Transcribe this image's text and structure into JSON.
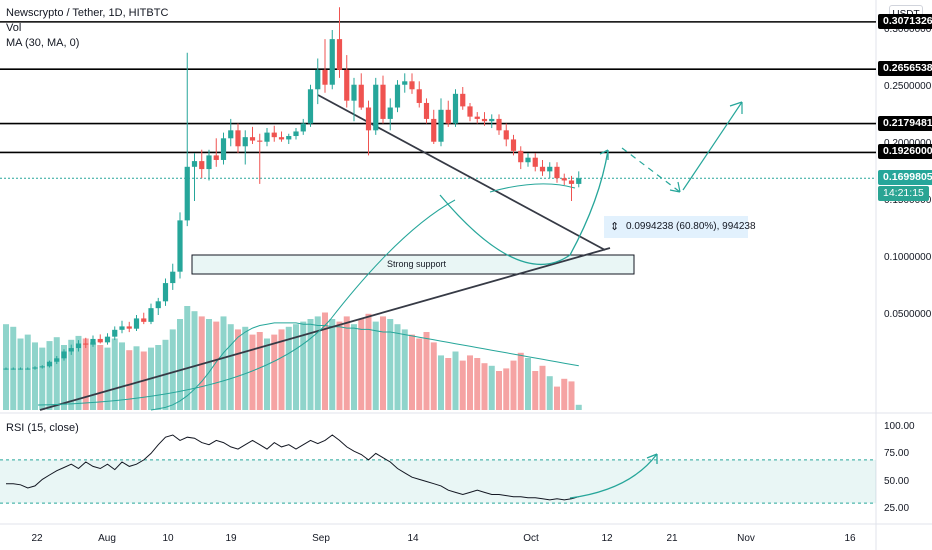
{
  "header": {
    "symbol_line": "Newscrypto / Tether, 1D, HITBTC",
    "vol_label": "Vol",
    "ma_label": "MA (30, MA, 0)"
  },
  "currency": "USDT",
  "rsi": {
    "label": "RSI (15, close)",
    "levels": [
      "100.00",
      "75.00",
      "50.00",
      "25.00"
    ]
  },
  "price_axis": [
    "0.3500000",
    "0.3000000",
    "0.2500000",
    "0.2000000",
    "0.1500000",
    "0.1000000",
    "0.0500000"
  ],
  "horizontal_levels": [
    "0.3071326",
    "0.2656538",
    "0.2179481",
    "0.1926000"
  ],
  "last_price": "0.1699805",
  "countdown": "14:21:15",
  "annotations": {
    "support": "Strong support",
    "measure": "0.0994238 (60.80%), 994238"
  },
  "time_axis": [
    "22",
    "Aug",
    "10",
    "19",
    "Sep",
    "14",
    "Oct",
    "12",
    "21",
    "Nov",
    "16"
  ],
  "colors": {
    "up": "#26a69a",
    "down": "#ef5350",
    "vol_up": "#8fd4cb",
    "vol_down": "#f5a3a3",
    "trend": "#363a45",
    "curve": "#26a69a",
    "projection": "#26a69a"
  },
  "chart_data": {
    "type": "candlestick",
    "symbol": "Newscrypto / Tether",
    "timeframe": "1D",
    "exchange": "HITBTC",
    "ylim": [
      0.0,
      0.37
    ],
    "ohlc": [
      [
        0.003,
        0.004,
        0.002,
        0.003
      ],
      [
        0.003,
        0.004,
        0.002,
        0.003
      ],
      [
        0.003,
        0.004,
        0.002,
        0.003
      ],
      [
        0.003,
        0.004,
        0.002,
        0.003
      ],
      [
        0.003,
        0.005,
        0.002,
        0.004
      ],
      [
        0.004,
        0.006,
        0.003,
        0.005
      ],
      [
        0.005,
        0.01,
        0.004,
        0.009
      ],
      [
        0.009,
        0.014,
        0.007,
        0.012
      ],
      [
        0.012,
        0.02,
        0.01,
        0.018
      ],
      [
        0.018,
        0.024,
        0.015,
        0.021
      ],
      [
        0.021,
        0.028,
        0.018,
        0.025
      ],
      [
        0.025,
        0.03,
        0.021,
        0.024
      ],
      [
        0.024,
        0.032,
        0.022,
        0.029
      ],
      [
        0.029,
        0.033,
        0.025,
        0.026
      ],
      [
        0.026,
        0.034,
        0.024,
        0.031
      ],
      [
        0.031,
        0.04,
        0.028,
        0.037
      ],
      [
        0.037,
        0.045,
        0.034,
        0.04
      ],
      [
        0.04,
        0.044,
        0.035,
        0.038
      ],
      [
        0.038,
        0.05,
        0.036,
        0.047
      ],
      [
        0.047,
        0.052,
        0.042,
        0.044
      ],
      [
        0.044,
        0.06,
        0.042,
        0.056
      ],
      [
        0.056,
        0.065,
        0.05,
        0.062
      ],
      [
        0.062,
        0.082,
        0.058,
        0.078
      ],
      [
        0.078,
        0.095,
        0.072,
        0.088
      ],
      [
        0.088,
        0.14,
        0.082,
        0.133
      ],
      [
        0.133,
        0.28,
        0.128,
        0.18
      ],
      [
        0.18,
        0.192,
        0.15,
        0.185
      ],
      [
        0.185,
        0.195,
        0.17,
        0.178
      ],
      [
        0.178,
        0.195,
        0.168,
        0.19
      ],
      [
        0.19,
        0.205,
        0.18,
        0.186
      ],
      [
        0.186,
        0.21,
        0.182,
        0.205
      ],
      [
        0.205,
        0.222,
        0.198,
        0.212
      ],
      [
        0.212,
        0.218,
        0.192,
        0.198
      ],
      [
        0.198,
        0.212,
        0.182,
        0.206
      ],
      [
        0.206,
        0.215,
        0.2,
        0.203
      ],
      [
        0.203,
        0.209,
        0.165,
        0.202
      ],
      [
        0.202,
        0.214,
        0.198,
        0.21
      ],
      [
        0.21,
        0.216,
        0.202,
        0.206
      ],
      [
        0.206,
        0.211,
        0.202,
        0.204
      ],
      [
        0.204,
        0.209,
        0.2,
        0.207
      ],
      [
        0.207,
        0.214,
        0.204,
        0.211
      ],
      [
        0.211,
        0.222,
        0.208,
        0.218
      ],
      [
        0.218,
        0.252,
        0.215,
        0.248
      ],
      [
        0.248,
        0.275,
        0.235,
        0.265
      ],
      [
        0.265,
        0.292,
        0.245,
        0.252
      ],
      [
        0.252,
        0.3,
        0.248,
        0.292
      ],
      [
        0.292,
        0.32,
        0.258,
        0.265
      ],
      [
        0.265,
        0.278,
        0.232,
        0.238
      ],
      [
        0.238,
        0.258,
        0.22,
        0.252
      ],
      [
        0.252,
        0.262,
        0.23,
        0.232
      ],
      [
        0.232,
        0.238,
        0.19,
        0.212
      ],
      [
        0.212,
        0.258,
        0.208,
        0.252
      ],
      [
        0.252,
        0.26,
        0.218,
        0.222
      ],
      [
        0.222,
        0.24,
        0.212,
        0.232
      ],
      [
        0.232,
        0.256,
        0.228,
        0.252
      ],
      [
        0.252,
        0.262,
        0.245,
        0.255
      ],
      [
        0.255,
        0.262,
        0.244,
        0.248
      ],
      [
        0.248,
        0.255,
        0.232,
        0.236
      ],
      [
        0.236,
        0.24,
        0.218,
        0.222
      ],
      [
        0.222,
        0.23,
        0.2,
        0.202
      ],
      [
        0.202,
        0.24,
        0.198,
        0.23
      ],
      [
        0.23,
        0.238,
        0.215,
        0.218
      ],
      [
        0.218,
        0.248,
        0.215,
        0.244
      ],
      [
        0.244,
        0.25,
        0.23,
        0.233
      ],
      [
        0.233,
        0.236,
        0.22,
        0.224
      ],
      [
        0.224,
        0.228,
        0.218,
        0.222
      ],
      [
        0.222,
        0.228,
        0.216,
        0.22
      ],
      [
        0.22,
        0.226,
        0.214,
        0.222
      ],
      [
        0.222,
        0.226,
        0.208,
        0.212
      ],
      [
        0.212,
        0.218,
        0.198,
        0.204
      ],
      [
        0.204,
        0.208,
        0.19,
        0.194
      ],
      [
        0.194,
        0.198,
        0.178,
        0.184
      ],
      [
        0.184,
        0.192,
        0.18,
        0.188
      ],
      [
        0.188,
        0.192,
        0.176,
        0.18
      ],
      [
        0.18,
        0.186,
        0.172,
        0.176
      ],
      [
        0.176,
        0.184,
        0.17,
        0.18
      ],
      [
        0.18,
        0.184,
        0.166,
        0.17
      ],
      [
        0.17,
        0.174,
        0.164,
        0.168
      ],
      [
        0.168,
        0.172,
        0.15,
        0.165
      ],
      [
        0.165,
        0.176,
        0.162,
        0.17
      ]
    ],
    "volume": [
      0.66,
      0.64,
      0.55,
      0.58,
      0.52,
      0.48,
      0.53,
      0.56,
      0.5,
      0.54,
      0.57,
      0.55,
      0.52,
      0.5,
      0.48,
      0.55,
      0.52,
      0.46,
      0.49,
      0.45,
      0.48,
      0.5,
      0.54,
      0.62,
      0.7,
      0.8,
      0.76,
      0.72,
      0.7,
      0.68,
      0.72,
      0.66,
      0.62,
      0.64,
      0.58,
      0.6,
      0.55,
      0.58,
      0.62,
      0.64,
      0.66,
      0.68,
      0.7,
      0.72,
      0.75,
      0.7,
      0.68,
      0.72,
      0.66,
      0.7,
      0.74,
      0.68,
      0.72,
      0.7,
      0.66,
      0.62,
      0.58,
      0.55,
      0.6,
      0.52,
      0.42,
      0.4,
      0.45,
      0.38,
      0.42,
      0.4,
      0.36,
      0.34,
      0.3,
      0.32,
      0.38,
      0.44,
      0.4,
      0.3,
      0.34,
      0.26,
      0.18,
      0.24,
      0.22,
      0.04
    ],
    "ma30_volume": [
      0.0,
      0.0,
      0.0,
      0.0,
      0.0,
      0.0,
      0.0,
      0.0,
      0.0,
      0.0,
      0.0,
      0.0,
      0.0,
      0.0,
      0.0,
      0.0,
      0.0,
      0.0,
      0.0,
      0.0,
      0.0,
      0.01,
      0.02,
      0.04,
      0.07,
      0.11,
      0.16,
      0.22,
      0.29,
      0.37,
      0.44,
      0.5,
      0.56,
      0.6,
      0.63,
      0.65,
      0.66,
      0.67,
      0.67,
      0.67,
      0.67,
      0.66,
      0.66,
      0.65,
      0.65,
      0.64,
      0.64,
      0.63,
      0.63,
      0.62,
      0.62,
      0.61,
      0.6,
      0.6,
      0.59,
      0.58,
      0.57,
      0.56,
      0.55,
      0.54,
      0.53,
      0.52,
      0.51,
      0.5,
      0.49,
      0.48,
      0.47,
      0.46,
      0.45,
      0.44,
      0.43,
      0.42,
      0.41,
      0.4,
      0.39,
      0.38,
      0.37,
      0.36,
      0.35,
      0.34
    ],
    "rsi_values": [
      48,
      48,
      47,
      44,
      46,
      52,
      56,
      60,
      63,
      66,
      62,
      68,
      64,
      62,
      66,
      61,
      68,
      64,
      66,
      70,
      76,
      84,
      91,
      93,
      88,
      91,
      90,
      86,
      84,
      88,
      86,
      82,
      80,
      84,
      88,
      84,
      80,
      86,
      82,
      84,
      80,
      84,
      88,
      85,
      88,
      93,
      88,
      82,
      78,
      75,
      70,
      76,
      72,
      68,
      62,
      58,
      54,
      52,
      50,
      48,
      46,
      42,
      40,
      38,
      40,
      42,
      40,
      38,
      38,
      37,
      36,
      36,
      35,
      35,
      34,
      33,
      34,
      33,
      34,
      36
    ],
    "rsi_ylim": [
      20,
      105
    ],
    "price_levels": [
      0.3071326,
      0.2656538,
      0.2179481,
      0.1926
    ],
    "last_price": 0.1699805
  }
}
